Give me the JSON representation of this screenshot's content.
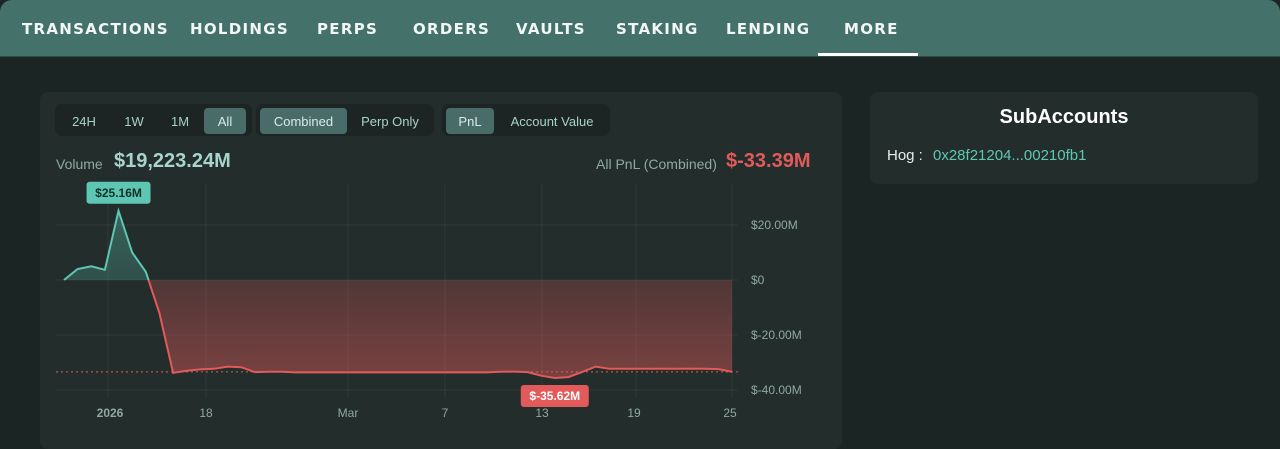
{
  "nav": {
    "tabs": [
      "TRANSACTIONS",
      "HOLDINGS",
      "PERPS",
      "ORDERS",
      "VAULTS",
      "STAKING",
      "LENDING",
      "MORE"
    ],
    "active_tab": "MORE"
  },
  "range_buttons": [
    "24H",
    "1W",
    "1M",
    "All"
  ],
  "active_range": "All",
  "scope_buttons": [
    "Combined",
    "Perp Only"
  ],
  "active_scope": "Combined",
  "metric_buttons": [
    "PnL",
    "Account Value"
  ],
  "active_metric": "PnL",
  "stats": {
    "volume_label": "Volume",
    "volume_value": "$19,223.24M",
    "pnl_label": "All PnL (Combined)",
    "pnl_value": "$-33.39M"
  },
  "colors": {
    "positive": "#5ec7b3",
    "negative": "#e25a5a",
    "nav_bg": "#44726b"
  },
  "subaccounts": {
    "title": "SubAccounts",
    "items": [
      {
        "name": "Hog :",
        "address": "0x28f21204...00210fb1"
      }
    ]
  },
  "chart_data": {
    "type": "area",
    "xtick_labels": [
      "2026",
      "18",
      "Mar",
      "7",
      "13",
      "19",
      "25"
    ],
    "ytick_labels": [
      "$20.00M",
      "$0",
      "$-20.00M",
      "$-40.00M"
    ],
    "ylim": [
      -40,
      25
    ],
    "y_unit": "$M",
    "max_label": "$25.16M",
    "min_label": "$-35.62M",
    "current_value": -33.39,
    "series": [
      {
        "x": [
          0,
          1,
          2,
          3,
          4,
          5,
          6,
          7,
          8,
          9,
          10,
          11,
          12,
          13,
          14,
          15,
          16,
          17,
          18,
          19,
          20,
          21,
          22,
          23,
          24,
          25,
          26,
          27,
          28,
          29,
          30,
          31,
          32,
          33,
          34,
          35,
          36,
          37,
          38,
          39,
          40,
          41,
          42,
          43,
          44,
          45,
          46,
          47,
          48,
          49
        ],
        "values": [
          0,
          4,
          5,
          3.7,
          25.16,
          10,
          3,
          -12,
          -33.8,
          -33,
          -32.5,
          -32.3,
          -31.5,
          -31.7,
          -33.5,
          -33.4,
          -33.4,
          -33.6,
          -33.6,
          -33.6,
          -33.6,
          -33.6,
          -33.6,
          -33.6,
          -33.6,
          -33.6,
          -33.6,
          -33.6,
          -33.6,
          -33.6,
          -33.6,
          -33.6,
          -33.4,
          -33.3,
          -33.5,
          -34.8,
          -35.62,
          -35.3,
          -33.5,
          -31.5,
          -32.3,
          -32.3,
          -32.3,
          -32.3,
          -32.2,
          -32.3,
          -32.2,
          -32.3,
          -32.4,
          -33.39
        ]
      }
    ]
  }
}
